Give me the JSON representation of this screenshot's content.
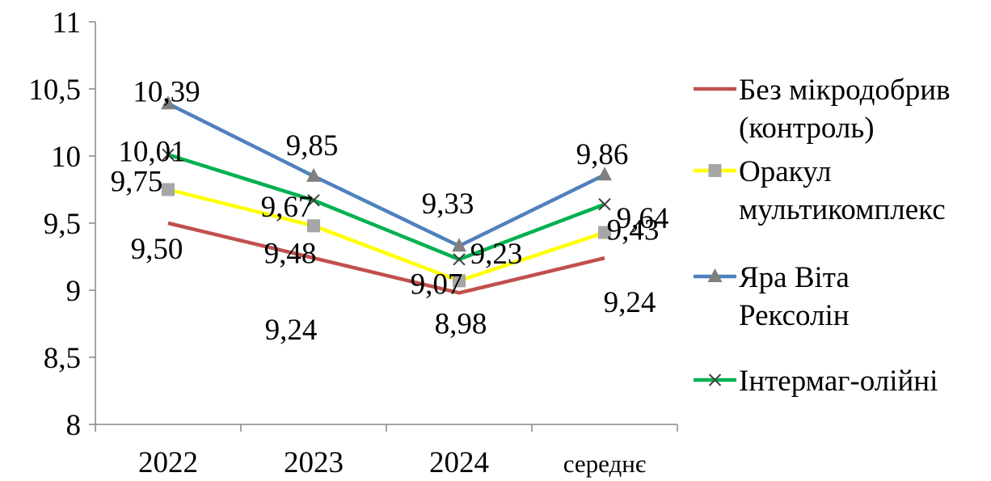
{
  "chart_data": {
    "type": "line",
    "categories": [
      "2022",
      "2023",
      "2024",
      "середнє"
    ],
    "ylim": [
      8,
      11
    ],
    "yticks": [
      "8",
      "8,5",
      "9",
      "9,5",
      "10",
      "10,5",
      "11"
    ],
    "grid": false,
    "legend_position": "right",
    "series": [
      {
        "name": "Без мікродобрив (контроль)",
        "name_lines": [
          "Без мікродобрив",
          "(контроль)"
        ],
        "values": [
          9.5,
          9.24,
          8.98,
          9.24
        ],
        "labels": [
          "9,50",
          "9,24",
          "8,98",
          "9,24"
        ],
        "color": "#C0504D",
        "marker": "none"
      },
      {
        "name": "Оракул мультикомплекс",
        "name_lines": [
          "Оракул",
          "мультикомплекс"
        ],
        "values": [
          9.75,
          9.48,
          9.07,
          9.43
        ],
        "labels": [
          "9,75",
          "9,48",
          "9,07",
          "9,43"
        ],
        "color": "#FFFF00",
        "marker_color": "#A6A6A6",
        "marker": "square"
      },
      {
        "name": "Яра Віта Рексолін",
        "name_lines": [
          "Яра Віта",
          "Рексолін"
        ],
        "values": [
          10.39,
          9.85,
          9.33,
          9.86
        ],
        "labels": [
          "10,39",
          "9,85",
          "9,33",
          "9,86"
        ],
        "color": "#4F81BD",
        "marker_color": "#808080",
        "marker": "triangle"
      },
      {
        "name": "Інтермаг-олійні",
        "name_lines": [
          "Інтермаг-олійні"
        ],
        "values": [
          10.01,
          9.67,
          9.23,
          9.64
        ],
        "labels": [
          "10,01",
          "9,67",
          "9,23",
          "9,64"
        ],
        "color": "#00B050",
        "marker_color": "#404040",
        "marker": "x"
      }
    ]
  }
}
